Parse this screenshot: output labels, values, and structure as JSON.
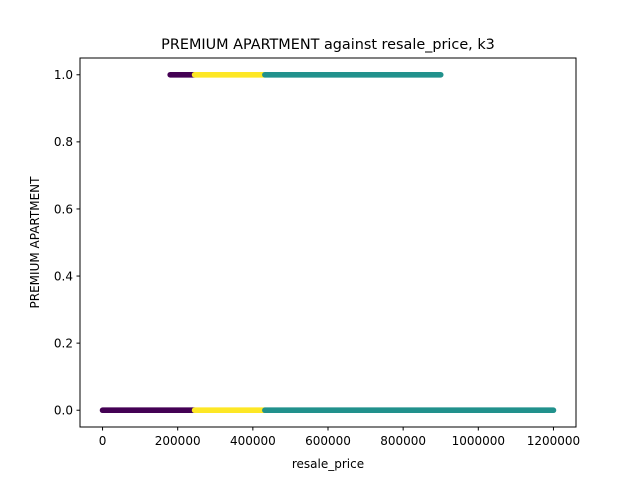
{
  "chart_data": {
    "type": "scatter",
    "title": "PREMIUM APARTMENT against resale_price, k3",
    "xlabel": "resale_price",
    "ylabel": "PREMIUM APARTMENT",
    "xlim": [
      -60000,
      1260000
    ],
    "ylim": [
      -0.05,
      1.05
    ],
    "xticks": [
      0,
      200000,
      400000,
      600000,
      800000,
      1000000,
      1200000
    ],
    "xtick_labels": [
      "0",
      "200000",
      "400000",
      "600000",
      "800000",
      "1000000",
      "1200000"
    ],
    "yticks": [
      0.0,
      0.2,
      0.4,
      0.6,
      0.8,
      1.0
    ],
    "ytick_labels": [
      "0.0",
      "0.2",
      "0.4",
      "0.6",
      "0.8",
      "1.0"
    ],
    "grid": false,
    "legend": "none",
    "colors": {
      "cluster_purple": "#440154",
      "cluster_yellow": "#fde725",
      "cluster_teal": "#21918c",
      "axes": "#000000"
    },
    "series": [
      {
        "cluster": "purple",
        "color": "#440154",
        "segments": [
          {
            "y": 1,
            "x_min": 180000,
            "x_max": 245000
          },
          {
            "y": 0,
            "x_min": 0,
            "x_max": 245000
          }
        ]
      },
      {
        "cluster": "yellow",
        "color": "#fde725",
        "segments": [
          {
            "y": 1,
            "x_min": 245000,
            "x_max": 432000
          },
          {
            "y": 0,
            "x_min": 245000,
            "x_max": 432000
          }
        ]
      },
      {
        "cluster": "teal",
        "color": "#21918c",
        "segments": [
          {
            "y": 1,
            "x_min": 432000,
            "x_max": 900000
          },
          {
            "y": 0,
            "x_min": 432000,
            "x_max": 1200000
          }
        ]
      }
    ]
  }
}
